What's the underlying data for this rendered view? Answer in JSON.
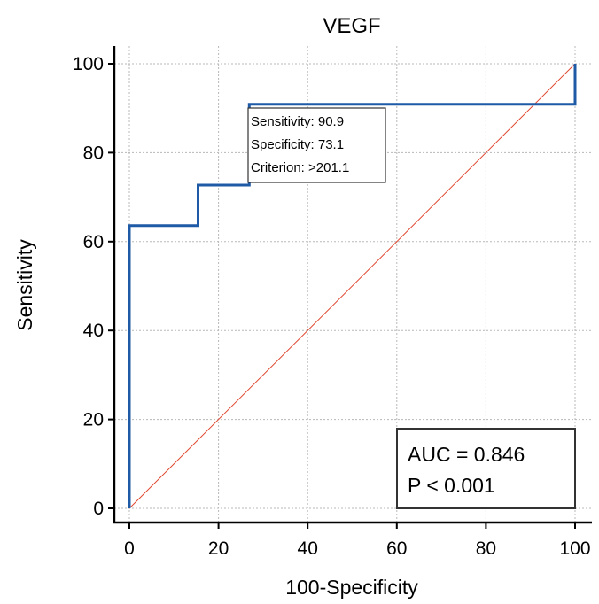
{
  "chart_data": {
    "type": "line",
    "title": "VEGF",
    "xlabel": "100-Specificity",
    "ylabel": "Sensitivity",
    "xlim": [
      0,
      100
    ],
    "ylim": [
      0,
      100
    ],
    "xticks": [
      0,
      20,
      40,
      60,
      80,
      100
    ],
    "yticks": [
      0,
      20,
      40,
      60,
      80,
      100
    ],
    "grid": true,
    "series": [
      {
        "color": "#1f5aa6",
        "x": [
          0,
          0,
          15.4,
          15.4,
          26.9,
          26.9,
          100,
          100
        ],
        "y": [
          0,
          63.6,
          63.6,
          72.7,
          72.7,
          90.9,
          90.9,
          100
        ]
      },
      {
        "color": "#e0472f",
        "x": [
          0,
          100
        ],
        "y": [
          0,
          100
        ]
      }
    ],
    "annotation": {
      "lines": [
        "Sensitivity: 90.9",
        "Specificity: 73.1",
        "Criterion: >201.1"
      ]
    },
    "stats_box": {
      "lines": [
        "AUC = 0.846",
        "P < 0.001"
      ]
    }
  }
}
